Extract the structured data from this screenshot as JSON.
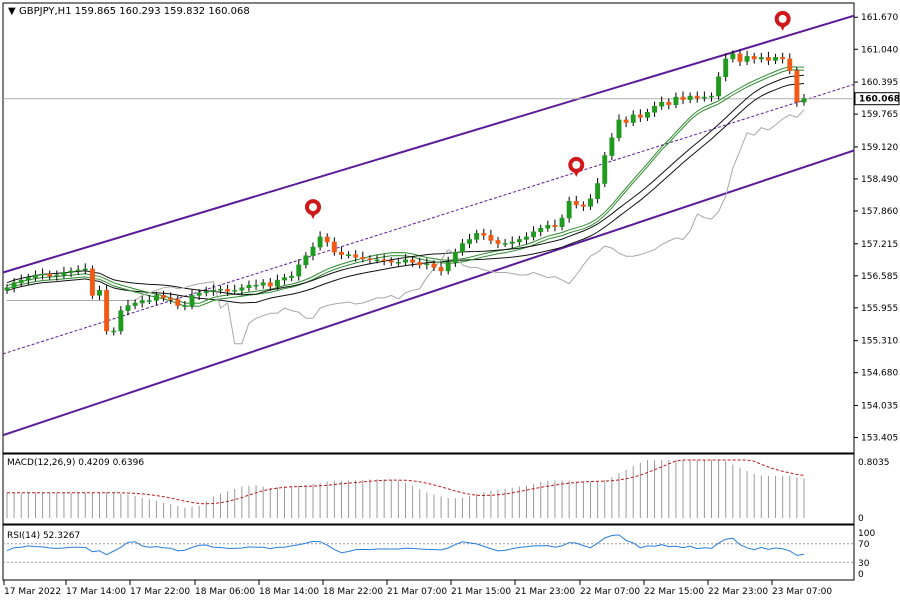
{
  "header": {
    "symbol_line": "GBPJPY,H1  159.865 160.293 159.832 160.068"
  },
  "macd": {
    "label": "MACD(12,26,9) 0.4209 0.6396",
    "scale_labels": [
      "0.8035",
      "0"
    ]
  },
  "rsi": {
    "label": "RSI(14) 52.3267",
    "scale_labels": [
      "100",
      "70",
      "30",
      "0"
    ]
  },
  "colors": {
    "background": "#ffffff",
    "bull": "#1f9a1f",
    "bear": "#f05a14",
    "channel": "#5a1a9a",
    "ma_green": "#2e8b2e",
    "ma_black": "#111111",
    "signal_red": "#c01818",
    "rsi_line": "#2a7ed8",
    "grid_text": "#000000",
    "current_price_line": "#b0b0b0"
  },
  "chart_data": {
    "type": "candlestick",
    "symbol": "GBPJPY",
    "timeframe": "H1",
    "ohlc_last": {
      "open": 159.865,
      "high": 160.293,
      "low": 159.832,
      "close": 160.068
    },
    "current_price_label": "160.068",
    "y_ticks": [
      "161.670",
      "161.040",
      "160.395",
      "159.765",
      "159.120",
      "158.490",
      "157.860",
      "157.215",
      "156.585",
      "155.955",
      "155.310",
      "154.680",
      "154.035",
      "153.405"
    ],
    "ylim": [
      153.405,
      161.67
    ],
    "x_ticks": [
      "17 Mar 2022",
      "17 Mar 14:00",
      "17 Mar 22:00",
      "18 Mar 06:00",
      "18 Mar 14:00",
      "18 Mar 22:00",
      "21 Mar 07:00",
      "21 Mar 15:00",
      "21 Mar 23:00",
      "22 Mar 07:00",
      "22 Mar 15:00",
      "22 Mar 23:00",
      "23 Mar 07:00"
    ],
    "price_series": {
      "approx_closes": [
        156.35,
        156.45,
        156.5,
        156.55,
        156.6,
        156.62,
        156.58,
        156.6,
        156.65,
        156.68,
        156.7,
        156.72,
        156.2,
        156.3,
        155.5,
        155.5,
        155.9,
        156.0,
        156.05,
        156.1,
        156.1,
        156.2,
        156.15,
        156.12,
        156.0,
        156.0,
        156.2,
        156.25,
        156.28,
        156.3,
        156.32,
        156.28,
        156.3,
        156.35,
        156.4,
        156.4,
        156.45,
        156.38,
        156.5,
        156.55,
        156.58,
        156.8,
        156.98,
        157.15,
        157.35,
        157.25,
        157.05,
        157.0,
        157.0,
        156.95,
        156.92,
        156.9,
        156.9,
        156.88,
        156.85,
        156.85,
        156.9,
        156.85,
        156.8,
        156.82,
        156.75,
        156.68,
        156.85,
        157.05,
        157.22,
        157.3,
        157.42,
        157.38,
        157.28,
        157.22,
        157.22,
        157.25,
        157.3,
        157.35,
        157.45,
        157.52,
        157.58,
        157.55,
        157.72,
        158.05,
        157.98,
        157.95,
        158.1,
        158.4,
        158.95,
        159.3,
        159.65,
        159.6,
        159.75,
        159.7,
        159.8,
        159.92,
        160.0,
        159.95,
        160.1,
        160.05,
        160.12,
        160.08,
        160.1,
        160.12,
        160.5,
        160.85,
        160.95,
        160.8,
        160.9,
        160.85,
        160.88,
        160.82,
        160.88,
        160.85,
        160.62,
        160.0,
        160.07
      ],
      "marker_arrows_after_candle": [
        43,
        80,
        109
      ]
    },
    "channel": {
      "upper_start": 156.65,
      "upper_end": 161.7,
      "lower_start": 153.45,
      "lower_end": 159.05,
      "mid_start": 155.05,
      "mid_end": 160.35
    },
    "macd": {
      "value": 0.4209,
      "signal": 0.6396,
      "ylim": [
        0,
        0.8035
      ]
    },
    "rsi": {
      "value": 52.3267,
      "levels": [
        30,
        70
      ],
      "ylim": [
        0,
        100
      ]
    }
  }
}
